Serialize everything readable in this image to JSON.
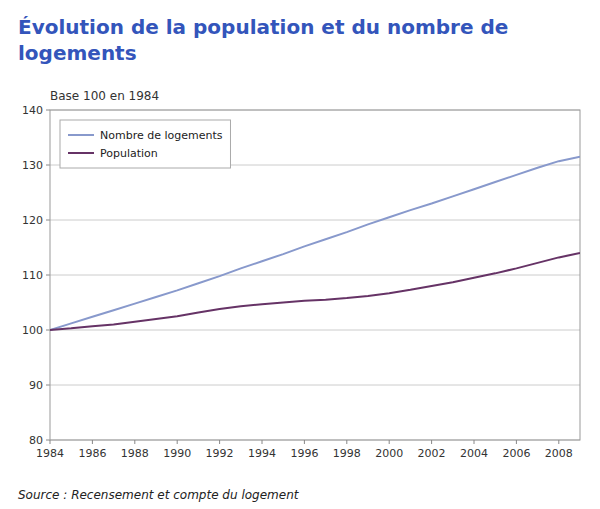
{
  "chart_data": {
    "type": "line",
    "title": "Évolution de la population et du nombre de logements",
    "subtitle": "Base 100 en 1984",
    "source": "Source : Recensement et compte du logement",
    "x": [
      1984,
      1985,
      1986,
      1987,
      1988,
      1989,
      1990,
      1991,
      1992,
      1993,
      1994,
      1995,
      1996,
      1997,
      1998,
      1999,
      2000,
      2001,
      2002,
      2003,
      2004,
      2005,
      2006,
      2007,
      2008,
      2009
    ],
    "series": [
      {
        "name": "Nombre de logements",
        "color": "#8899cc",
        "values": [
          100.0,
          101.2,
          102.4,
          103.6,
          104.8,
          106.0,
          107.2,
          108.5,
          109.8,
          111.2,
          112.5,
          113.8,
          115.2,
          116.5,
          117.8,
          119.2,
          120.5,
          121.8,
          123.0,
          124.3,
          125.6,
          126.9,
          128.2,
          129.5,
          130.7,
          131.5
        ]
      },
      {
        "name": "Population",
        "color": "#663366",
        "values": [
          100.0,
          100.3,
          100.7,
          101.0,
          101.5,
          102.0,
          102.5,
          103.2,
          103.8,
          104.3,
          104.7,
          105.0,
          105.3,
          105.5,
          105.8,
          106.2,
          106.7,
          107.3,
          108.0,
          108.7,
          109.5,
          110.3,
          111.2,
          112.2,
          113.2,
          114.0
        ]
      }
    ],
    "xlim": [
      1984,
      2009
    ],
    "xticks": [
      1984,
      1986,
      1988,
      1990,
      1992,
      1994,
      1996,
      1998,
      2000,
      2002,
      2004,
      2006,
      2008
    ],
    "ylim": [
      80,
      140
    ],
    "yticks": [
      80,
      90,
      100,
      110,
      120,
      130,
      140
    ],
    "grid": true,
    "legend": "upper left"
  }
}
